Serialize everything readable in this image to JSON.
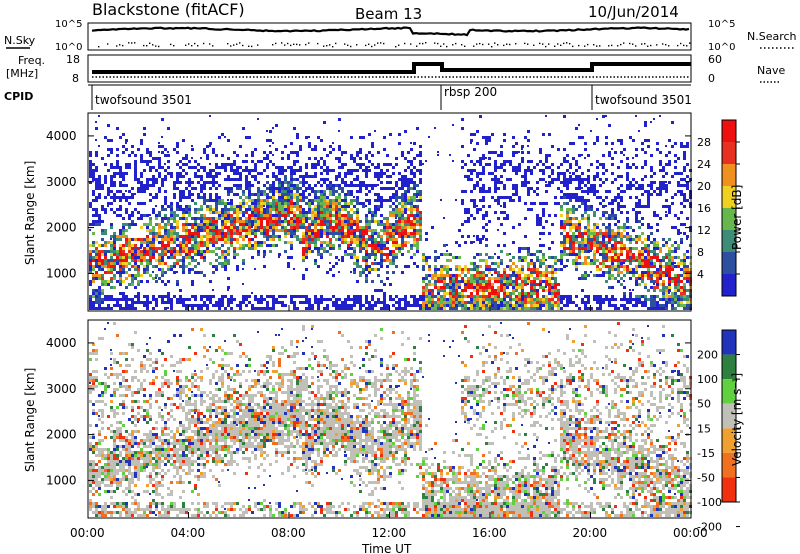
{
  "header": {
    "station": "Blackstone (fitACF)",
    "beam": "Beam 13",
    "date": "10/Jun/2014"
  },
  "top_panels": {
    "nsky_label": "N.Sky",
    "nsearch_label": "N.Search",
    "noise_ticks": [
      "10^5",
      "10^0"
    ],
    "freq_label_1": "Freq.",
    "freq_label_2": "[MHz]",
    "freq_ticks": [
      "18",
      "8"
    ],
    "nave_label": "Nave",
    "nave_ticks": [
      "60",
      "0"
    ],
    "cpid_label": "CPID",
    "cpid_segments": [
      {
        "name": "twofsound 3501",
        "start": "00:00"
      },
      {
        "name": "rbsp 200",
        "start": "14:00"
      },
      {
        "name": "twofsound 3501",
        "start": "20:00"
      }
    ]
  },
  "chart_data": [
    {
      "type": "heatmap",
      "title": "Power",
      "ylabel": "Slant Range [km]",
      "yticks": [
        "1000",
        "2000",
        "3000",
        "4000"
      ],
      "colorbar_label": "Power [dB]",
      "colorbar_ticks": [
        "4",
        "8",
        "12",
        "16",
        "20",
        "24",
        "28"
      ],
      "colors": [
        "#2222cc",
        "#2c4fa0",
        "#3c8c78",
        "#66b84c",
        "#f0d020",
        "#f09020",
        "#e83020",
        "#ee1010"
      ]
    },
    {
      "type": "heatmap",
      "title": "Velocity",
      "ylabel": "Slant Range [km]",
      "yticks": [
        "1000",
        "2000",
        "3000",
        "4000"
      ],
      "colorbar_label": "Velocity [m s⁻¹]",
      "colorbar_ticks": [
        "200",
        "100",
        "50",
        "15",
        "-15",
        "-50",
        "-100",
        "-200"
      ],
      "colors": [
        "#2233bb",
        "#2e8040",
        "#60d040",
        "#c0c0b8",
        "#f0a030",
        "#f07020",
        "#f03010"
      ]
    }
  ],
  "xaxis": {
    "label": "Time UT",
    "ticks": [
      "00:00",
      "04:00",
      "08:00",
      "12:00",
      "16:00",
      "20:00",
      "00:00"
    ]
  }
}
